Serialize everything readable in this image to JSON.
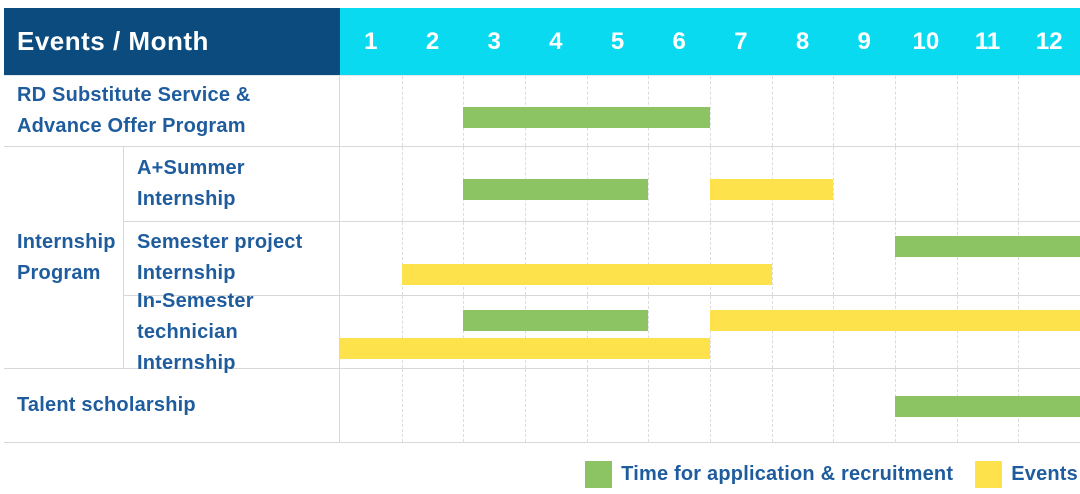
{
  "colors": {
    "header_bg": "#0b4b7e",
    "months_bg": "#0adaf0",
    "header_text": "#ffffff",
    "label_text": "#1f5c9e",
    "green": "#8cc464",
    "yellow": "#fde24b",
    "grid": "#dcdcdc",
    "border": "#d8d8d8"
  },
  "header": {
    "title": "Events / Month",
    "months": [
      "1",
      "2",
      "3",
      "4",
      "5",
      "6",
      "7",
      "8",
      "9",
      "10",
      "11",
      "12"
    ]
  },
  "rows": {
    "rd": {
      "label": "RD Substitute Service &\nAdvance Offer Program"
    },
    "internship_group": {
      "label": "Internship\nProgram"
    },
    "a_summer": {
      "label": "A+Summer\nInternship"
    },
    "semester_project": {
      "label": "Semester project\nInternship"
    },
    "in_semester": {
      "label": "In-Semester\ntechnician Internship"
    },
    "talent": {
      "label": "Talent scholarship"
    }
  },
  "legend": {
    "application": "Time for application & recruitment",
    "events": "Events"
  },
  "chart_data": {
    "type": "gantt",
    "x_axis": {
      "label": "Month",
      "ticks": [
        1,
        2,
        3,
        4,
        5,
        6,
        7,
        8,
        9,
        10,
        11,
        12
      ]
    },
    "legend": [
      {
        "color": "green",
        "label": "Time for application & recruitment"
      },
      {
        "color": "yellow",
        "label": "Events"
      }
    ],
    "rows": [
      {
        "row": "rd",
        "bars": [
          {
            "color": "green",
            "start": 3,
            "end": 7,
            "lane": "single"
          }
        ]
      },
      {
        "row": "a_summer",
        "bars": [
          {
            "color": "green",
            "start": 3,
            "end": 6,
            "lane": "single"
          },
          {
            "color": "yellow",
            "start": 7,
            "end": 9,
            "lane": "single"
          }
        ]
      },
      {
        "row": "semester_project",
        "bars": [
          {
            "color": "green",
            "start": 10,
            "end": 13,
            "lane": "upper"
          },
          {
            "color": "yellow",
            "start": 2,
            "end": 8,
            "lane": "lower"
          }
        ]
      },
      {
        "row": "in_semester",
        "bars": [
          {
            "color": "green",
            "start": 3,
            "end": 6,
            "lane": "upper"
          },
          {
            "color": "yellow",
            "start": 7,
            "end": 13,
            "lane": "upper"
          },
          {
            "color": "yellow",
            "start": 1,
            "end": 7,
            "lane": "lower"
          }
        ]
      },
      {
        "row": "talent",
        "bars": [
          {
            "color": "green",
            "start": 10,
            "end": 13,
            "lane": "center"
          }
        ]
      }
    ]
  }
}
